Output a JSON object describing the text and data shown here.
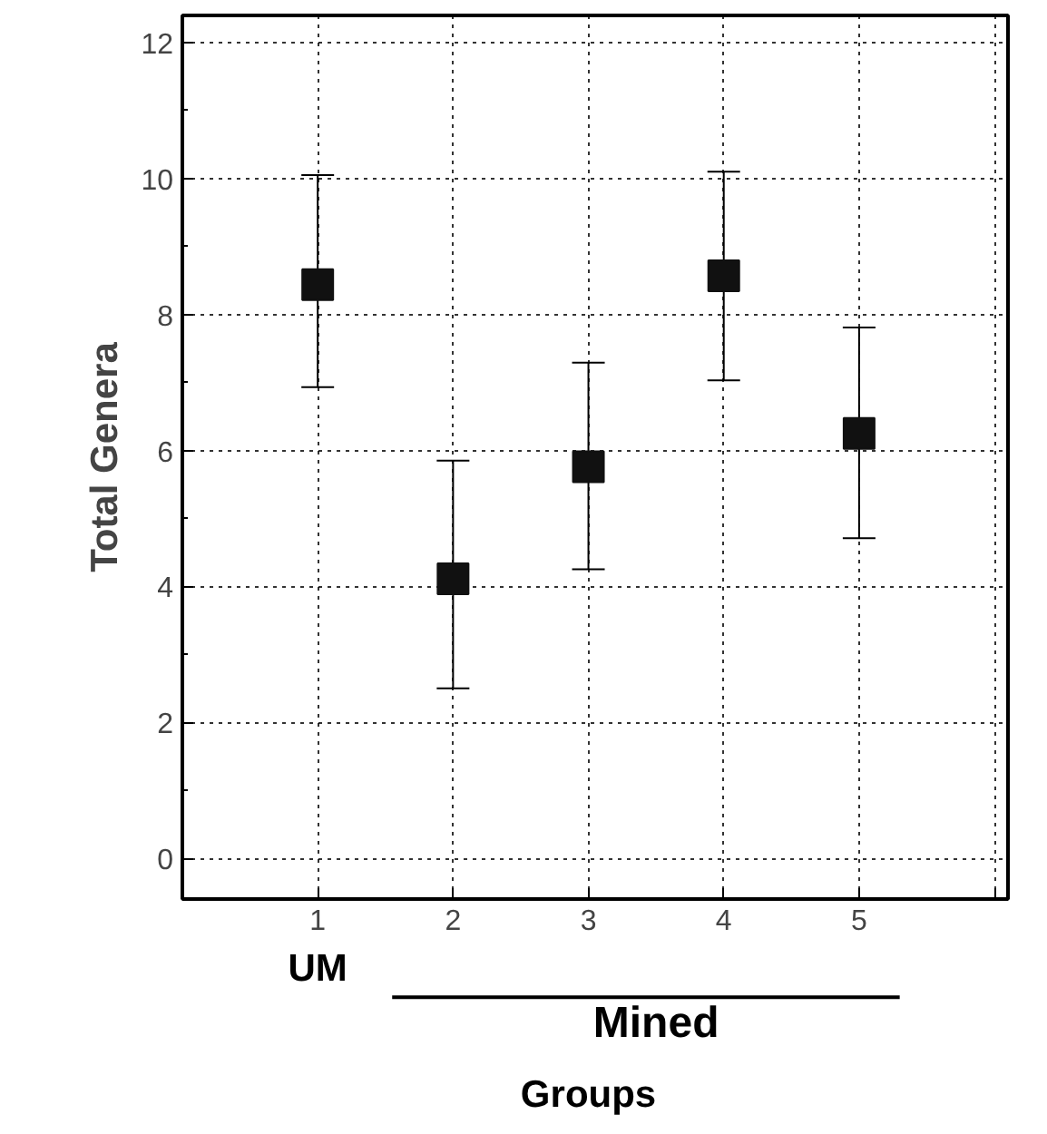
{
  "chart_data": {
    "type": "scatter",
    "xlabel": "Groups",
    "ylabel": "Total Genera",
    "x": [
      1,
      2,
      3,
      4,
      5
    ],
    "values": [
      8.44,
      4.11,
      5.76,
      8.57,
      6.25
    ],
    "errors": [
      [
        6.93,
        10.05
      ],
      [
        2.5,
        5.85
      ],
      [
        4.25,
        7.29
      ],
      [
        7.03,
        10.1
      ],
      [
        4.71,
        7.81
      ]
    ],
    "color": "#111111",
    "marker": "square",
    "grid": true,
    "xlim": [
      0,
      6.1
    ],
    "ylim": [
      -0.6,
      12.4
    ],
    "xticks": [
      {
        "value": 0,
        "label": null
      },
      1,
      2,
      3,
      4,
      5,
      {
        "value": 6,
        "label": null
      }
    ],
    "yticks": [
      0,
      2,
      4,
      6,
      8,
      10,
      12
    ],
    "annotations": [
      "UM",
      "Mined"
    ]
  }
}
